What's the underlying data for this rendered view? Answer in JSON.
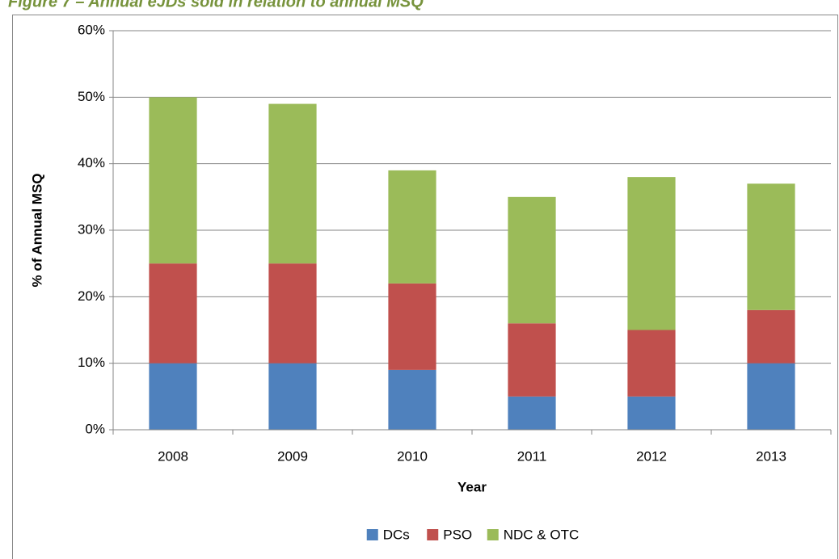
{
  "chart_data": {
    "type": "stacked_bar",
    "title": "Figure 7 – Annual eJDs sold in relation to annual MSQ",
    "x_label": "Year",
    "y_label": "% of Annual MSQ",
    "categories": [
      "2008",
      "2009",
      "2010",
      "2011",
      "2012",
      "2013"
    ],
    "series": [
      {
        "name": "DCs",
        "color": "#4f81bd",
        "values": [
          10,
          10,
          9,
          5,
          5,
          10
        ]
      },
      {
        "name": "PSO",
        "color": "#c0504d",
        "values": [
          15,
          15,
          13,
          11,
          10,
          8
        ]
      },
      {
        "name": "NDC & OTC",
        "color": "#9bbb59",
        "values": [
          25,
          24,
          17,
          19,
          23,
          19
        ]
      }
    ],
    "ylim": [
      0,
      60
    ],
    "yticks": [
      {
        "value": 0,
        "label": "0%"
      },
      {
        "value": 10,
        "label": "10%"
      },
      {
        "value": 20,
        "label": "20%"
      },
      {
        "value": 30,
        "label": "30%"
      },
      {
        "value": 40,
        "label": "40%"
      },
      {
        "value": 50,
        "label": "50%"
      },
      {
        "value": 60,
        "label": "60%"
      }
    ],
    "grid": true,
    "legend": "bottom"
  }
}
